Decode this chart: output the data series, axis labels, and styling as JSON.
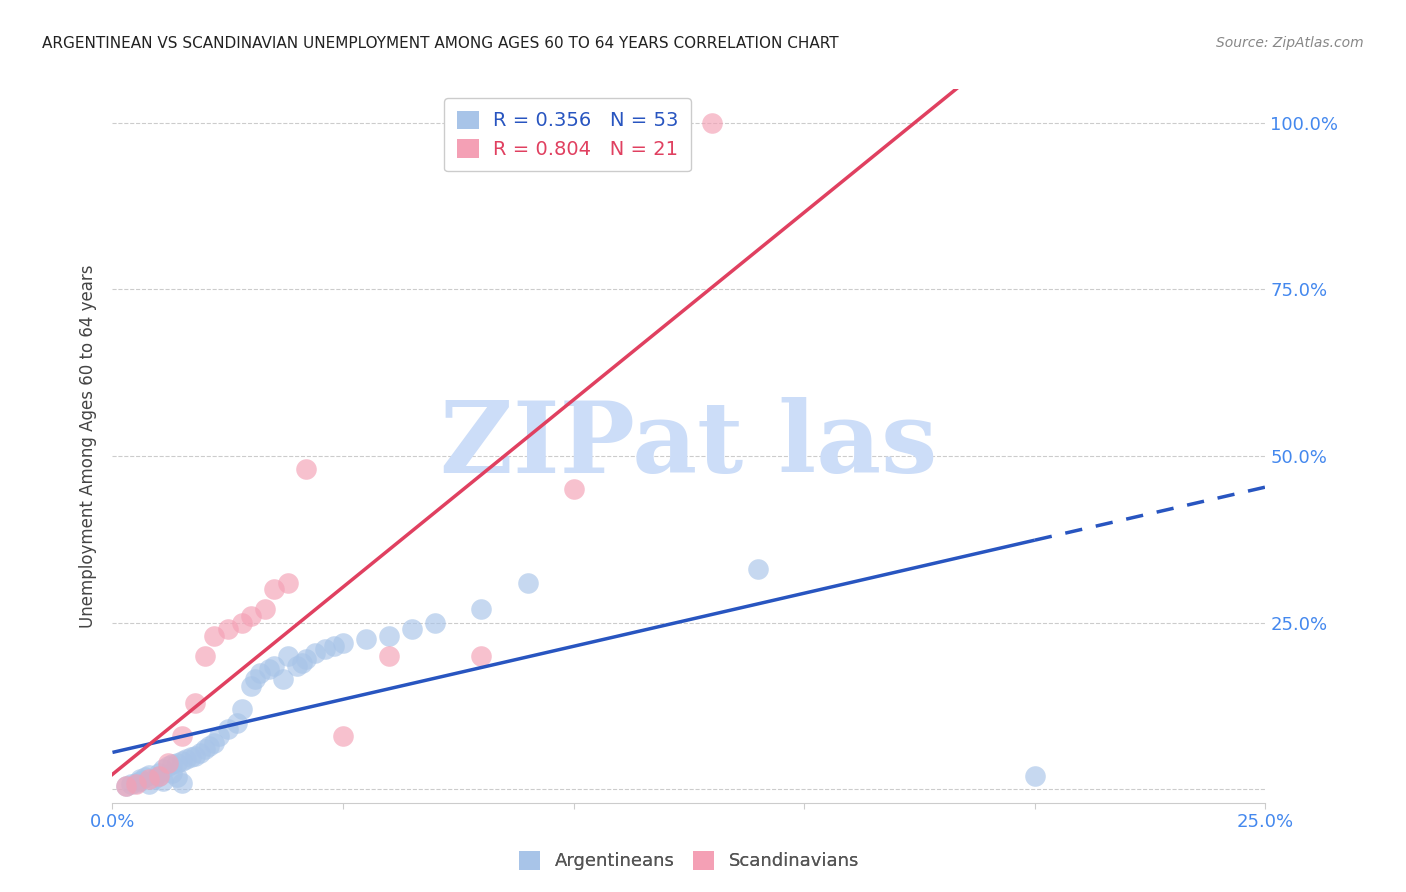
{
  "title": "ARGENTINEAN VS SCANDINAVIAN UNEMPLOYMENT AMONG AGES 60 TO 64 YEARS CORRELATION CHART",
  "source": "Source: ZipAtlas.com",
  "ylabel": "Unemployment Among Ages 60 to 64 years",
  "xlim": [
    0.0,
    0.25
  ],
  "ylim": [
    -0.02,
    1.05
  ],
  "R_arg": 0.356,
  "N_arg": 53,
  "R_scan": 0.804,
  "N_scan": 21,
  "arg_color": "#a8c4e8",
  "scan_color": "#f4a0b5",
  "arg_line_color": "#2855c0",
  "scan_line_color": "#e04060",
  "tick_color": "#4488ee",
  "watermark": "ZIPat las",
  "watermark_color": "#ccddf8",
  "arg_scatter_x": [
    0.003,
    0.004,
    0.005,
    0.006,
    0.006,
    0.007,
    0.008,
    0.008,
    0.009,
    0.01,
    0.01,
    0.011,
    0.011,
    0.012,
    0.013,
    0.013,
    0.014,
    0.014,
    0.015,
    0.015,
    0.016,
    0.017,
    0.018,
    0.019,
    0.02,
    0.021,
    0.022,
    0.023,
    0.025,
    0.027,
    0.028,
    0.03,
    0.031,
    0.032,
    0.034,
    0.035,
    0.037,
    0.038,
    0.04,
    0.041,
    0.042,
    0.044,
    0.046,
    0.048,
    0.05,
    0.055,
    0.06,
    0.065,
    0.07,
    0.08,
    0.09,
    0.14,
    0.2
  ],
  "arg_scatter_y": [
    0.005,
    0.008,
    0.01,
    0.012,
    0.015,
    0.018,
    0.008,
    0.022,
    0.015,
    0.02,
    0.025,
    0.03,
    0.012,
    0.035,
    0.038,
    0.025,
    0.04,
    0.018,
    0.042,
    0.01,
    0.045,
    0.048,
    0.05,
    0.055,
    0.06,
    0.065,
    0.07,
    0.08,
    0.09,
    0.1,
    0.12,
    0.155,
    0.165,
    0.175,
    0.18,
    0.185,
    0.165,
    0.2,
    0.185,
    0.19,
    0.195,
    0.205,
    0.21,
    0.215,
    0.22,
    0.225,
    0.23,
    0.24,
    0.25,
    0.27,
    0.31,
    0.33,
    0.02
  ],
  "scan_scatter_x": [
    0.003,
    0.005,
    0.008,
    0.01,
    0.012,
    0.015,
    0.018,
    0.02,
    0.022,
    0.025,
    0.028,
    0.03,
    0.033,
    0.035,
    0.038,
    0.042,
    0.05,
    0.06,
    0.08,
    0.1,
    0.13
  ],
  "scan_scatter_y": [
    0.005,
    0.008,
    0.015,
    0.02,
    0.04,
    0.08,
    0.13,
    0.2,
    0.23,
    0.24,
    0.25,
    0.26,
    0.27,
    0.3,
    0.31,
    0.48,
    0.08,
    0.2,
    0.2,
    0.45,
    1.0
  ]
}
